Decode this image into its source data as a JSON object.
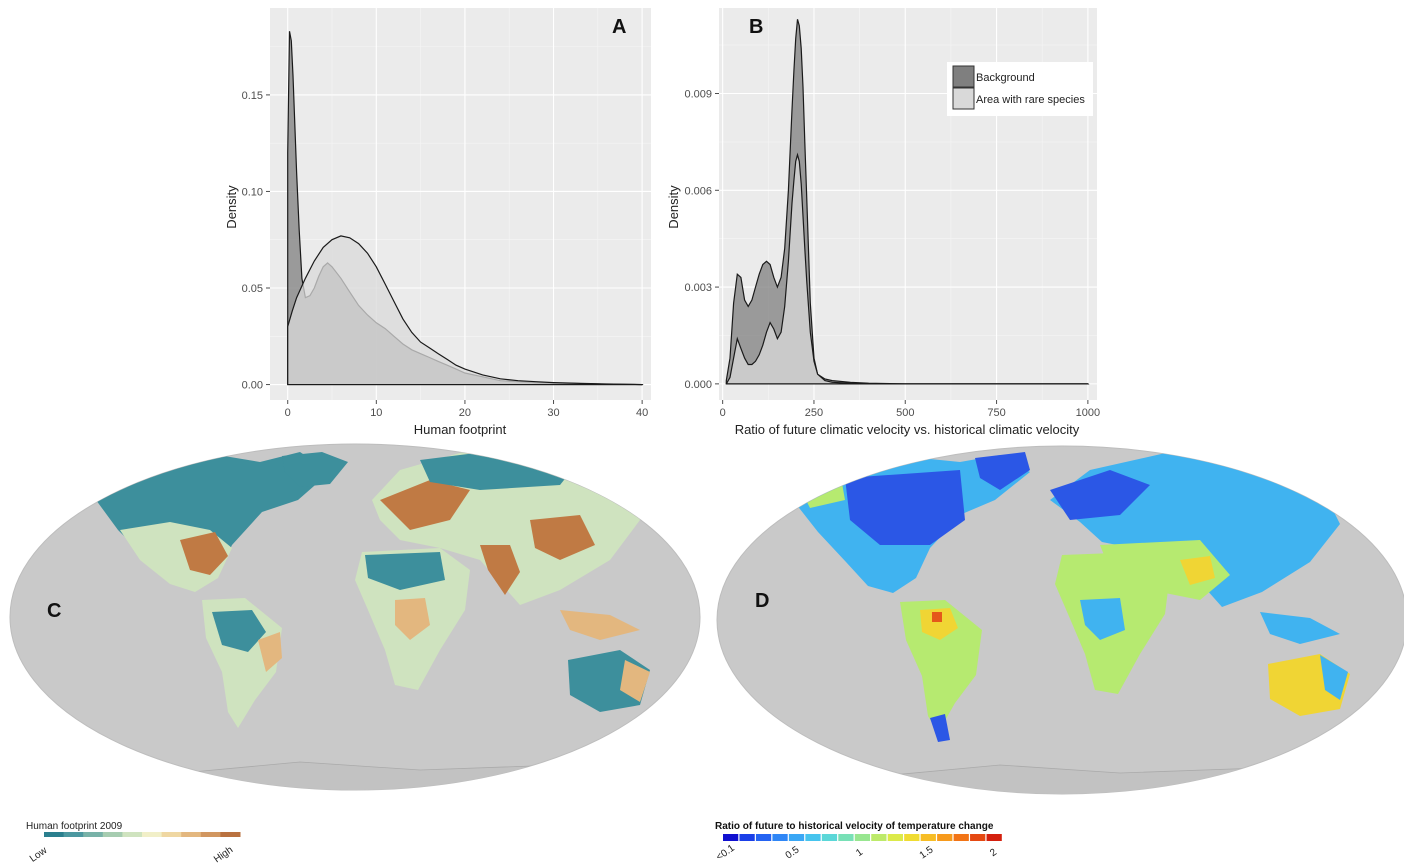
{
  "chart_data": [
    {
      "type": "area",
      "panel": "A",
      "xlabel": "Human footprint",
      "ylabel": "Density",
      "xlim": [
        -2,
        41
      ],
      "ylim": [
        -0.008,
        0.195
      ],
      "x_ticks": [
        0,
        10,
        20,
        30,
        40
      ],
      "y_ticks": [
        0.0,
        0.05,
        0.1,
        0.15
      ],
      "y_tick_labels": [
        "0.00",
        "0.05",
        "0.10",
        "0.15"
      ],
      "grid": true,
      "series": [
        {
          "name": "Background",
          "color": "#7f7f7f",
          "x": [
            0,
            0.2,
            0.4,
            0.6,
            0.8,
            1.0,
            1.3,
            1.6,
            2.0,
            2.5,
            3.0,
            3.5,
            4.0,
            4.5,
            5.0,
            6,
            7,
            8,
            9,
            10,
            11,
            12,
            13,
            14,
            15,
            16,
            17,
            18,
            19,
            20,
            22,
            24,
            26,
            28,
            30,
            33,
            36,
            40
          ],
          "y": [
            0.12,
            0.183,
            0.178,
            0.16,
            0.135,
            0.11,
            0.08,
            0.055,
            0.045,
            0.046,
            0.05,
            0.056,
            0.061,
            0.063,
            0.061,
            0.055,
            0.048,
            0.041,
            0.036,
            0.032,
            0.029,
            0.025,
            0.021,
            0.018,
            0.016,
            0.014,
            0.012,
            0.01,
            0.008,
            0.006,
            0.004,
            0.002,
            0.0015,
            0.001,
            0.0008,
            0.0005,
            0.0002,
            0.0
          ]
        },
        {
          "name": "Area with rare species",
          "color": "#d9d9d9",
          "x": [
            0,
            0.5,
            1,
            2,
            3,
            4,
            5,
            6,
            7,
            8,
            9,
            10,
            11,
            12,
            13,
            14,
            15,
            16,
            17,
            18,
            19,
            20,
            22,
            24,
            26,
            28,
            30,
            33,
            36,
            40
          ],
          "y": [
            0.03,
            0.038,
            0.045,
            0.055,
            0.064,
            0.071,
            0.075,
            0.077,
            0.076,
            0.073,
            0.068,
            0.061,
            0.052,
            0.043,
            0.034,
            0.027,
            0.022,
            0.019,
            0.016,
            0.013,
            0.01,
            0.008,
            0.005,
            0.003,
            0.002,
            0.0015,
            0.001,
            0.0006,
            0.0003,
            0.0
          ]
        }
      ]
    },
    {
      "type": "area",
      "panel": "B",
      "xlabel": "Ratio of future climatic velocity vs. historical climatic velocity",
      "ylabel": "Density",
      "xlim": [
        -10,
        1025
      ],
      "ylim": [
        -0.0005,
        0.01165
      ],
      "x_ticks": [
        0,
        250,
        500,
        750,
        1000
      ],
      "y_ticks": [
        0.0,
        0.003,
        0.006,
        0.009
      ],
      "y_tick_labels": [
        "0.000",
        "0.003",
        "0.006",
        "0.009"
      ],
      "grid": true,
      "legend": {
        "position": "top-right",
        "entries": [
          "Background",
          "Area with rare species"
        ]
      },
      "series": [
        {
          "name": "Background",
          "color": "#7f7f7f",
          "x": [
            10,
            20,
            30,
            40,
            50,
            60,
            70,
            80,
            90,
            100,
            110,
            120,
            130,
            140,
            150,
            160,
            170,
            180,
            190,
            195,
            200,
            205,
            210,
            215,
            220,
            225,
            230,
            240,
            250,
            260,
            280,
            300,
            350,
            400,
            500,
            1000
          ],
          "y": [
            0.0001,
            0.0008,
            0.0025,
            0.0034,
            0.0033,
            0.0026,
            0.0024,
            0.0026,
            0.003,
            0.0034,
            0.0037,
            0.0038,
            0.0037,
            0.0033,
            0.003,
            0.0033,
            0.0042,
            0.006,
            0.0085,
            0.0097,
            0.0107,
            0.0113,
            0.0111,
            0.0104,
            0.0092,
            0.0075,
            0.0058,
            0.0025,
            0.0008,
            0.0003,
            0.00015,
            0.0001,
            5e-05,
            2e-05,
            0.0,
            0.0
          ]
        },
        {
          "name": "Area with rare species",
          "color": "#d9d9d9",
          "x": [
            10,
            20,
            30,
            40,
            50,
            60,
            70,
            80,
            90,
            100,
            110,
            120,
            130,
            140,
            150,
            160,
            170,
            180,
            190,
            195,
            200,
            205,
            210,
            215,
            220,
            225,
            230,
            240,
            250,
            260,
            280,
            300,
            350,
            400,
            500,
            1000
          ],
          "y": [
            0.0,
            0.0002,
            0.0008,
            0.0014,
            0.0011,
            0.0008,
            0.0006,
            0.0006,
            0.0007,
            0.0009,
            0.0012,
            0.0016,
            0.0019,
            0.0017,
            0.0014,
            0.0016,
            0.0024,
            0.0038,
            0.0056,
            0.0063,
            0.0069,
            0.0071,
            0.0069,
            0.0062,
            0.0052,
            0.0042,
            0.0032,
            0.0016,
            0.0007,
            0.0003,
            0.0001,
            5e-05,
            2e-05,
            0.0,
            0.0,
            0.0
          ]
        }
      ]
    }
  ],
  "panels": {
    "A": "A",
    "B": "B",
    "C": "C",
    "D": "D"
  },
  "legends": {
    "footprint": {
      "title": "Human footprint 2009",
      "low": "Low",
      "high": "High",
      "colors": [
        "#2a7f8e",
        "#4c98a0",
        "#78b2a8",
        "#a6ccb0",
        "#cfe3bf",
        "#f1efc8",
        "#efd7a2",
        "#e3b77f",
        "#d19660",
        "#b9713f"
      ]
    },
    "velocity": {
      "title": "Ratio of future to historical velocity of temperature change",
      "tick_labels": [
        "<0.1",
        "0.5",
        "1",
        "1.5",
        "2"
      ],
      "colors": [
        "#1010d0",
        "#1a3fe8",
        "#2463f2",
        "#2f86f6",
        "#3aa7f5",
        "#46c4ee",
        "#5bd7d8",
        "#78e0b6",
        "#98e690",
        "#bdea6a",
        "#dcea4a",
        "#f0dc32",
        "#f7bd25",
        "#f79a1c",
        "#f27416",
        "#e54912",
        "#d4200e"
      ]
    }
  },
  "maps": {
    "ocean_color": "#c9c9c9",
    "footprint_land_colors": [
      "#3d8f9c",
      "#cfe3bf",
      "#e3b77f",
      "#c07a44"
    ],
    "velocity_land_colors": [
      "#2b57e6",
      "#40b3f0",
      "#b6ea70",
      "#f0d534",
      "#e5581a"
    ]
  }
}
